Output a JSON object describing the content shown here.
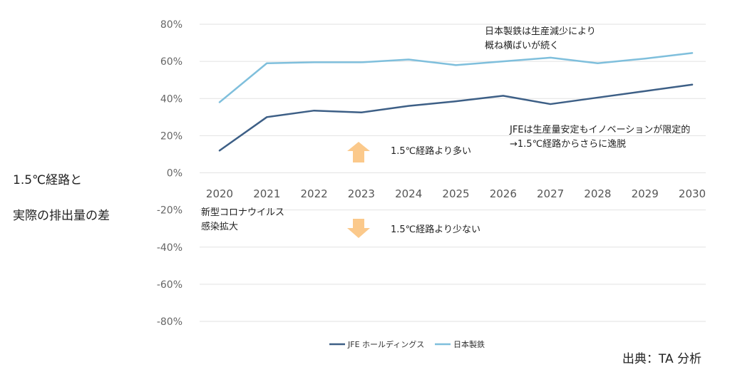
{
  "side_label": {
    "line1": "1.5℃経路と",
    "line2": "実際の排出量の差"
  },
  "source": "出典：TA 分析",
  "chart_data": {
    "type": "line",
    "categories": [
      "2020",
      "2021",
      "2022",
      "2023",
      "2024",
      "2025",
      "2026",
      "2027",
      "2028",
      "2029",
      "2030"
    ],
    "y_ticks": [
      80,
      60,
      40,
      20,
      0,
      -20,
      -40,
      -60,
      -80
    ],
    "y_tick_labels": [
      "80%",
      "60%",
      "40%",
      "20%",
      "0%",
      "-20%",
      "-40%",
      "-60%",
      "-80%"
    ],
    "ylim": [
      -80,
      80
    ],
    "series": [
      {
        "name": "JFE ホールディングス",
        "color": "#3d5f86",
        "values": [
          12,
          30,
          33.5,
          32.5,
          36,
          38.5,
          41.5,
          37,
          40.5,
          44,
          47.5
        ]
      },
      {
        "name": "日本製鉄",
        "color": "#7fbfdc",
        "values": [
          38,
          59,
          59.5,
          59.5,
          61,
          58,
          60,
          62,
          59,
          61.5,
          64.5
        ]
      }
    ],
    "annotations": {
      "nippon_line1": "日本製鉄は生産減少により",
      "nippon_line2": "概ね横ばいが続く",
      "jfe_line1": "JFEは生産量安定もイノベーションが限定的",
      "jfe_line2": "→1.5℃経路からさらに逸脱",
      "more_label": "1.5℃経路より多い",
      "less_label": "1.5℃経路より少ない",
      "covid_line1": "新型コロナウイルス",
      "covid_line2": "感染拡大"
    },
    "arrow_color": "#fbc98b",
    "grid": true,
    "legend_position": "bottom"
  }
}
